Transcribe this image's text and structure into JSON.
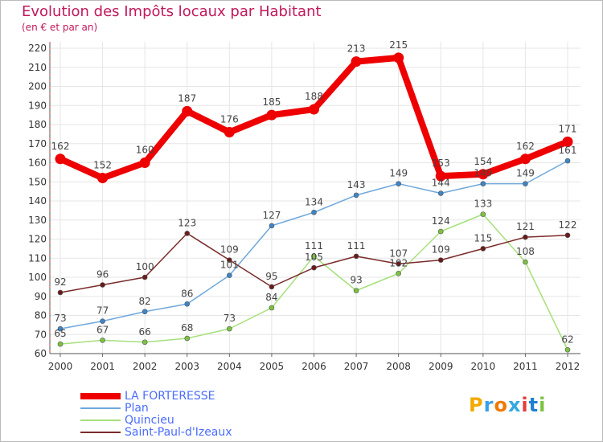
{
  "title": "Evolution des Impôts locaux par Habitant",
  "subtitle": "(en € et par an)",
  "logo": {
    "text": "Proxiti",
    "colors": [
      "#f2a900",
      "#3aa0e6",
      "#f07a00",
      "#35a8e0",
      "#e63c3c",
      "#1f7fd0",
      "#7cc242"
    ]
  },
  "chart_data": {
    "type": "line",
    "title": "Evolution des Impôts locaux par Habitant",
    "subtitle": "(en € et par an)",
    "xlabel": "",
    "ylabel": "",
    "x": [
      "2000",
      "2001",
      "2002",
      "2003",
      "2004",
      "2005",
      "2006",
      "2007",
      "2008",
      "2009",
      "2010",
      "2011",
      "2012"
    ],
    "ylim": [
      60,
      220
    ],
    "yticks": [
      60,
      70,
      80,
      90,
      100,
      110,
      120,
      130,
      140,
      150,
      160,
      170,
      180,
      190,
      200,
      210,
      220
    ],
    "grid": true,
    "legend_position": "bottom-left",
    "series": [
      {
        "name": "LA FORTERESSE",
        "color": "#ee0000",
        "line_width": 8,
        "marker_radius": 6.5,
        "values": [
          162,
          152,
          160,
          187,
          176,
          185,
          188,
          213,
          215,
          153,
          154,
          162,
          171
        ],
        "labels": [
          "162",
          "152",
          "160",
          "187",
          "176",
          "185",
          "188",
          "213",
          "215",
          "153",
          "154",
          "162",
          "171"
        ]
      },
      {
        "name": "Plan",
        "color": "#6fa8dc",
        "marker_color": "#3d85c6",
        "line_width": 1.5,
        "marker_radius": 3,
        "values": [
          73,
          77,
          82,
          86,
          101,
          127,
          134,
          143,
          149,
          144,
          149,
          149,
          161
        ],
        "labels": [
          "73",
          "77",
          "82",
          "86",
          "101",
          "127",
          "134",
          "143",
          "149",
          "144",
          "149",
          "149",
          "161"
        ]
      },
      {
        "name": "Quincieu",
        "color": "#a6e07a",
        "marker_color": "#7cc242",
        "line_width": 1.5,
        "marker_radius": 3,
        "values": [
          65,
          67,
          66,
          68,
          73,
          84,
          111,
          93,
          102,
          124,
          133,
          108,
          62
        ],
        "labels": [
          "65",
          "67",
          "66",
          "68",
          "73",
          "84",
          "111",
          "93",
          "102",
          "124",
          "133",
          "108",
          "62"
        ]
      },
      {
        "name": "Saint-Paul-d'Izeaux",
        "color": "#7a2a2a",
        "marker_color": "#6b1a1a",
        "line_width": 1.5,
        "marker_radius": 3,
        "values": [
          92,
          96,
          100,
          123,
          109,
          95,
          105,
          111,
          107,
          109,
          115,
          121,
          122
        ],
        "labels": [
          "92",
          "96",
          "100",
          "123",
          "109",
          "95",
          "105",
          "111",
          "107",
          "109",
          "115",
          "121",
          "122"
        ]
      }
    ]
  }
}
